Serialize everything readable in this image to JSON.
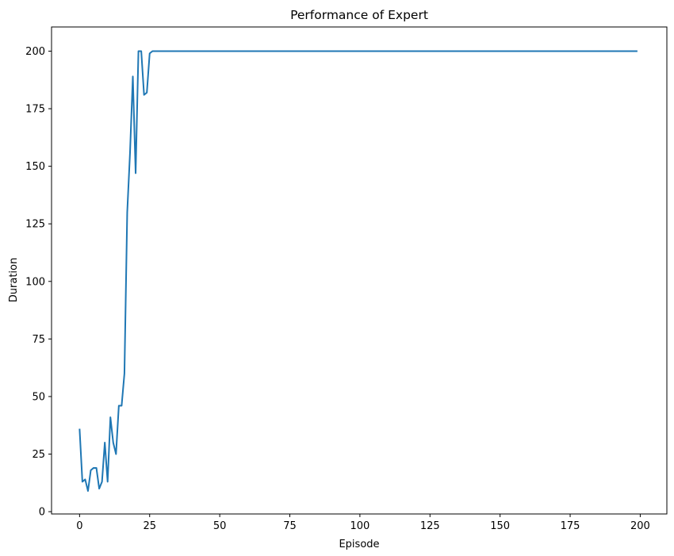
{
  "chart_data": {
    "type": "line",
    "title": "Performance of Expert",
    "xlabel": "Episode",
    "ylabel": "Duration",
    "xlim": [
      -10,
      209.5
    ],
    "ylim": [
      -1,
      210.5
    ],
    "xticks": [
      0,
      25,
      50,
      75,
      100,
      125,
      150,
      175,
      200
    ],
    "yticks": [
      0,
      25,
      50,
      75,
      100,
      125,
      150,
      175,
      200
    ],
    "grid": false,
    "series_color": "#1f77b4",
    "series": [
      {
        "x": [
          0,
          1,
          2,
          3,
          4,
          5,
          6,
          7,
          8,
          9,
          10,
          11,
          12,
          13,
          14,
          15,
          16,
          17,
          18,
          19,
          20,
          21,
          22,
          23,
          24,
          25,
          26,
          27,
          199
        ],
        "values": [
          36,
          13,
          14,
          9,
          18,
          19,
          19,
          10,
          13,
          30,
          13,
          41,
          30,
          25,
          46,
          46,
          60,
          130,
          156,
          189,
          147,
          200,
          200,
          181,
          182,
          199,
          200,
          200,
          200
        ]
      }
    ]
  }
}
